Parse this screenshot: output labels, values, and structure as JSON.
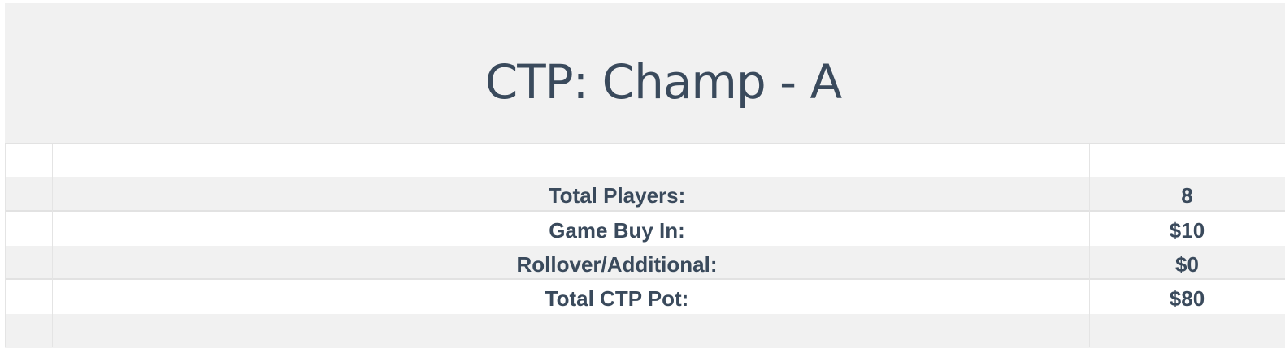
{
  "title": "CTP: Champ - A",
  "rows": [
    {
      "label": "Total Players:",
      "value": "8"
    },
    {
      "label": "Game Buy In:",
      "value": "$10"
    },
    {
      "label": "Rollover/Additional:",
      "value": "$0"
    },
    {
      "label": "Total CTP Pot:",
      "value": "$80"
    }
  ]
}
